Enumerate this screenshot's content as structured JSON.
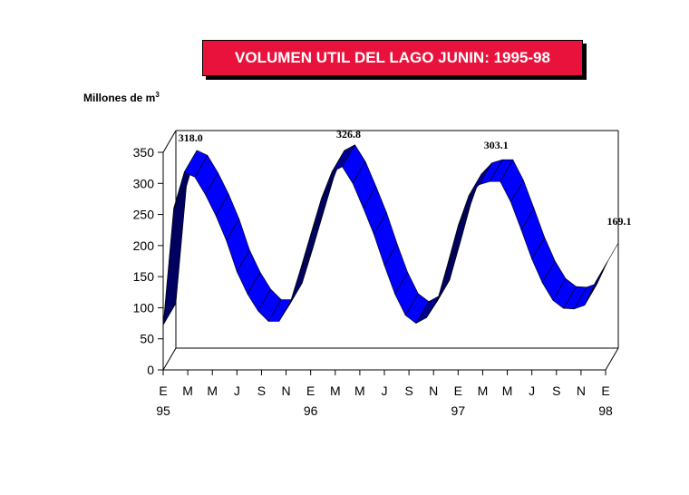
{
  "title": "VOLUMEN UTIL DEL LAGO JUNIN: 1995-98",
  "unit_label": "Millones de m",
  "unit_sup": "3",
  "chart_data": {
    "type": "line",
    "title": "VOLUMEN UTIL DEL LAGO JUNIN: 1995-98",
    "ylabel": "Millones de m3",
    "ylim": [
      0,
      350
    ],
    "yticks": [
      "0",
      "50",
      "100",
      "150",
      "200",
      "250",
      "300",
      "350"
    ],
    "month_labels": [
      "E",
      "M",
      "M",
      "J",
      "S",
      "N",
      "E",
      "M",
      "M",
      "J",
      "S",
      "N",
      "E",
      "M",
      "M",
      "J",
      "S",
      "N",
      "E"
    ],
    "year_labels": [
      {
        "index": 0,
        "label": "95"
      },
      {
        "index": 6,
        "label": "96"
      },
      {
        "index": 12,
        "label": "97"
      },
      {
        "index": 18,
        "label": "98"
      }
    ],
    "series": [
      {
        "color": "#0000ff",
        "values": [
          72,
          260,
          318,
          310,
          282,
          248,
          208,
          158,
          122,
          95,
          78,
          78,
          105,
          160,
          218,
          275,
          318,
          327,
          300,
          260,
          218,
          168,
          122,
          88,
          75,
          84,
          110,
          170,
          232,
          280,
          298,
          303,
          303,
          270,
          225,
          178,
          140,
          112,
          99,
          98,
          104,
          140,
          169
        ]
      }
    ],
    "annotations": [
      {
        "label": "318.0",
        "index": 2,
        "value": 318.0
      },
      {
        "label": "326.8",
        "index": 17,
        "value": 326.8
      },
      {
        "label": "303.1",
        "index": 31,
        "value": 303.1
      },
      {
        "label": "169.1",
        "index": 42,
        "value": 169.1
      }
    ]
  }
}
